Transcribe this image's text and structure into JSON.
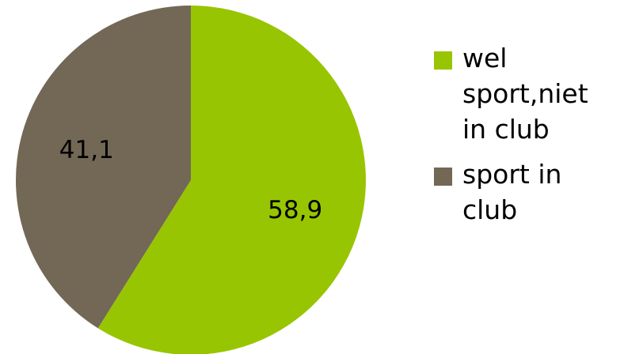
{
  "chart_data": {
    "type": "pie",
    "slices": [
      {
        "label": "wel sport,niet in club",
        "value": 58.9,
        "display_value": "58,9",
        "color": "#98c501"
      },
      {
        "label": "sport in club",
        "value": 41.1,
        "display_value": "41,1",
        "color": "#736756"
      }
    ],
    "legend": {
      "placement": "right",
      "entries": [
        "wel sport,niet in club",
        "sport in club"
      ]
    }
  }
}
